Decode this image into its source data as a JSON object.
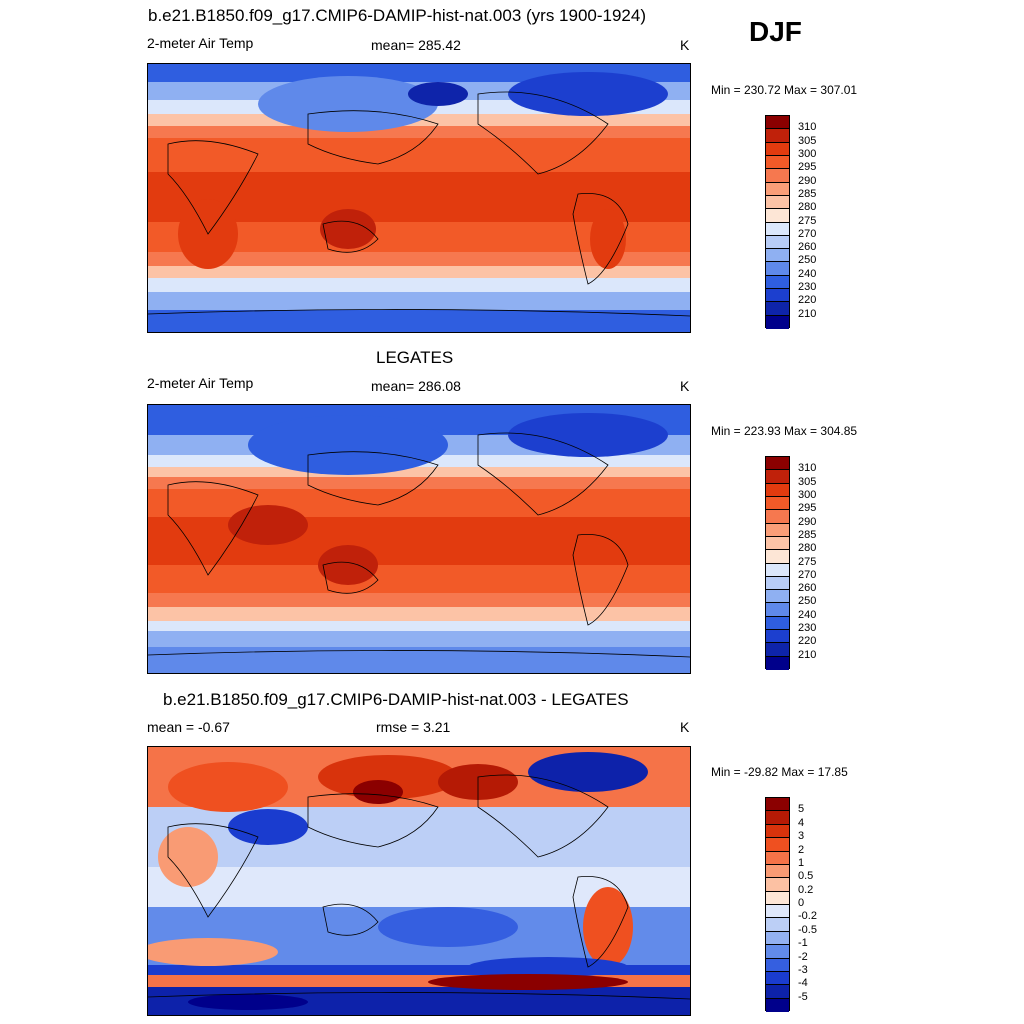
{
  "season": "DJF",
  "panels": [
    {
      "title": "b.e21.B1850.f09_g17.CMIP6-DAMIP-hist-nat.003 (yrs 1900-1924)",
      "left_label": "2-meter Air Temp",
      "center_label": "mean= 285.42",
      "units": "K",
      "minmax": "Min = 230.72 Max = 307.01"
    },
    {
      "title": "LEGATES",
      "left_label": "2-meter Air Temp",
      "center_label": "mean= 286.08",
      "units": "K",
      "minmax": "Min = 223.93 Max = 304.85"
    },
    {
      "title": "b.e21.B1850.f09_g17.CMIP6-DAMIP-hist-nat.003 - LEGATES",
      "left_label": "mean =  -0.67",
      "center_label": "rmse =   3.21",
      "units": "K",
      "minmax": "Min = -29.82 Max =  17.85"
    }
  ],
  "colorbars": {
    "temp": {
      "labels": [
        "310",
        "305",
        "300",
        "295",
        "290",
        "285",
        "280",
        "275",
        "270",
        "260",
        "250",
        "240",
        "230",
        "220",
        "210"
      ],
      "colors": [
        "#8b0000",
        "#c0210a",
        "#e23b0f",
        "#f25a28",
        "#f6784f",
        "#fa9e78",
        "#fcc3a6",
        "#fde6d6",
        "#dbe7fb",
        "#b8cdf7",
        "#8fb0f2",
        "#5f89ea",
        "#2f5ee0",
        "#1c3fcf",
        "#0e24aa",
        "#00008b"
      ]
    },
    "diff": {
      "labels": [
        "5",
        "4",
        "3",
        "2",
        "1",
        "0.5",
        "0.2",
        "0",
        "-0.2",
        "-0.5",
        "-1",
        "-2",
        "-3",
        "-4",
        "-5"
      ],
      "colors": [
        "#8b0000",
        "#b51a05",
        "#d8330c",
        "#ef5020",
        "#f57348",
        "#f99b74",
        "#fcc1a3",
        "#fde6d6",
        "#dfe8fb",
        "#bccff6",
        "#93b1f1",
        "#628bea",
        "#355fe0",
        "#1a3ccf",
        "#0d22aa",
        "#00008b"
      ]
    }
  },
  "chart_data": [
    {
      "type": "heatmap",
      "title": "b.e21.B1850.f09_g17.CMIP6-DAMIP-hist-nat.003 (yrs 1900-1924)",
      "variable": "2-meter Air Temp",
      "units": "K",
      "mean": 285.42,
      "min": 230.72,
      "max": 307.01,
      "contour_levels": [
        210,
        220,
        230,
        240,
        250,
        260,
        270,
        275,
        280,
        285,
        290,
        295,
        300,
        305,
        310
      ]
    },
    {
      "type": "heatmap",
      "title": "LEGATES",
      "variable": "2-meter Air Temp",
      "units": "K",
      "mean": 286.08,
      "min": 223.93,
      "max": 304.85,
      "contour_levels": [
        210,
        220,
        230,
        240,
        250,
        260,
        270,
        275,
        280,
        285,
        290,
        295,
        300,
        305,
        310
      ]
    },
    {
      "type": "heatmap",
      "title": "b.e21.B1850.f09_g17.CMIP6-DAMIP-hist-nat.003 - LEGATES",
      "units": "K",
      "mean": -0.67,
      "rmse": 3.21,
      "min": -29.82,
      "max": 17.85,
      "contour_levels": [
        -5,
        -4,
        -3,
        -2,
        -1,
        -0.5,
        -0.2,
        0,
        0.2,
        0.5,
        1,
        2,
        3,
        4,
        5
      ]
    }
  ]
}
